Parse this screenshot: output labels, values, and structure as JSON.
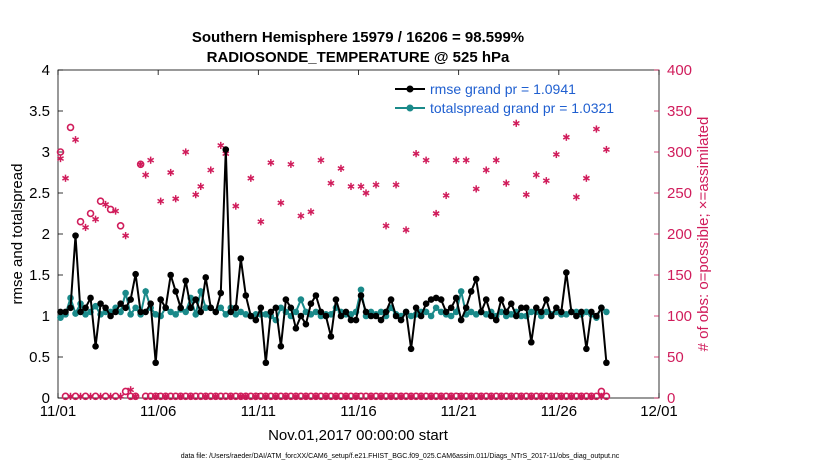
{
  "chart_data": {
    "type": "line",
    "title_line1": "Southern Hemisphere 15979 / 16206 = 98.599%",
    "title_line2": "RADIOSONDE_TEMPERATURE @ 525 hPa",
    "xlabel": "Nov.01,2017 00:00:00 start",
    "ylabel_left": "rmse and totalspread",
    "ylabel_right": "# of obs: o=possible; ×=assimilated",
    "footer": "data file: /Users/raeder/DAI/ATM_forcXX/CAM6_setup/f.e21.FHIST_BGC.f09_025.CAM6assim.011/Diags_NTrS_2017-11/obs_diag_output.nc",
    "x_tick_labels": [
      "11/01",
      "11/06",
      "11/11",
      "11/16",
      "11/21",
      "11/26",
      "12/01"
    ],
    "x_tick_days": [
      0,
      5,
      10,
      15,
      20,
      25,
      30
    ],
    "xlim_days": [
      0,
      30
    ],
    "ylim_left": [
      0,
      4
    ],
    "y_ticks_left": [
      "0",
      "0.5",
      "1",
      "1.5",
      "2",
      "2.5",
      "3",
      "3.5",
      "4"
    ],
    "ylim_right": [
      0,
      400
    ],
    "y_ticks_right": [
      "0",
      "50",
      "100",
      "150",
      "200",
      "250",
      "300",
      "350",
      "400"
    ],
    "x_step_days": 0.25,
    "colors": {
      "rmse": "#000000",
      "spread": "#1a8a8a",
      "obs": "#d01c5b",
      "legend_text": "#1f5fd0"
    },
    "series": [
      {
        "name": "rmse grand pr = 1.0941",
        "axis": "left",
        "values": [
          1.05,
          1.05,
          1.1,
          1.98,
          1.05,
          1.1,
          1.22,
          0.63,
          1.15,
          1.1,
          1.0,
          1.05,
          1.15,
          1.1,
          1.2,
          1.51,
          1.05,
          1.05,
          1.15,
          0.43,
          1.2,
          1.1,
          1.5,
          1.3,
          1.1,
          1.43,
          1.1,
          1.2,
          1.05,
          1.47,
          1.1,
          1.05,
          1.28,
          3.03,
          1.05,
          1.1,
          1.7,
          1.25,
          1.0,
          0.95,
          1.1,
          0.43,
          1.05,
          1.1,
          0.63,
          1.2,
          1.1,
          0.85,
          1.0,
          0.9,
          1.15,
          1.25,
          1.05,
          1.0,
          0.75,
          1.2,
          1.0,
          1.05,
          0.95,
          0.95,
          1.25,
          1.05,
          1.0,
          1.0,
          0.95,
          1.05,
          1.2,
          1.0,
          0.95,
          1.05,
          0.6,
          1.1,
          1.0,
          1.15,
          1.2,
          1.22,
          1.2,
          1.05,
          1.1,
          1.22,
          0.95,
          1.1,
          1.3,
          1.45,
          1.05,
          1.2,
          1.0,
          0.95,
          1.2,
          1.05,
          1.15,
          1.0,
          1.1,
          1.1,
          0.68,
          1.1,
          1.05,
          1.2,
          1.0,
          1.1,
          1.05,
          1.53,
          1.05,
          1.0,
          1.05,
          0.6,
          1.05,
          1.0,
          1.1,
          0.43
        ]
      },
      {
        "name": "totalspread grand pr = 1.0321",
        "axis": "left",
        "values": [
          0.98,
          1.02,
          1.22,
          1.03,
          1.15,
          1.02,
          1.05,
          1.12,
          1.02,
          1.05,
          1.05,
          1.1,
          1.05,
          1.28,
          1.02,
          1.1,
          1.02,
          1.3,
          1.1,
          1.02,
          1.0,
          1.1,
          1.05,
          1.02,
          1.08,
          1.05,
          1.22,
          1.02,
          1.3,
          1.1,
          1.1,
          1.05,
          1.1,
          1.02,
          1.1,
          1.02,
          1.05,
          1.02,
          1.0,
          1.02,
          1.02,
          1.02,
          1.0,
          0.95,
          1.1,
          1.05,
          1.0,
          1.05,
          1.2,
          1.05,
          1.02,
          1.05,
          1.0,
          1.02,
          1.02,
          1.1,
          1.05,
          1.02,
          1.02,
          1.05,
          1.32,
          1.0,
          1.05,
          1.02,
          1.05,
          1.0,
          1.1,
          1.02,
          1.0,
          1.05,
          1.0,
          1.02,
          1.05,
          1.05,
          1.0,
          1.1,
          1.05,
          1.02,
          1.0,
          1.05,
          1.3,
          1.02,
          1.05,
          1.02,
          1.05,
          1.02,
          1.05,
          1.0,
          1.05,
          1.0,
          1.02,
          1.05,
          1.0,
          1.0,
          1.05,
          1.05,
          1.0,
          1.05,
          1.02,
          1.05,
          1.02,
          1.02,
          1.05,
          1.05,
          1.02,
          1.05,
          1.02,
          0.98,
          1.1,
          1.05
        ]
      },
      {
        "name": "obs possible",
        "axis": "right",
        "marker": "circle",
        "values": [
          300,
          2,
          330,
          2,
          215,
          2,
          225,
          2,
          240,
          2,
          230,
          2,
          210,
          8,
          2,
          2,
          285,
          2,
          2,
          2,
          2,
          2,
          2,
          2,
          2,
          2,
          2,
          2,
          2,
          2,
          2,
          2,
          2,
          2,
          2,
          2,
          2,
          2,
          2,
          2,
          2,
          2,
          2,
          2,
          2,
          2,
          2,
          2,
          2,
          2,
          2,
          2,
          2,
          2,
          2,
          2,
          2,
          2,
          2,
          2,
          2,
          2,
          2,
          2,
          2,
          2,
          2,
          2,
          2,
          2,
          2,
          2,
          2,
          2,
          2,
          2,
          2,
          2,
          2,
          2,
          2,
          2,
          2,
          2,
          2,
          2,
          2,
          2,
          2,
          2,
          2,
          2,
          2,
          2,
          2,
          2,
          2,
          2,
          2,
          2,
          2,
          2,
          2,
          2,
          2,
          2,
          2,
          2,
          8,
          2
        ]
      },
      {
        "name": "obs assimilated",
        "axis": "right",
        "marker": "asterisk",
        "values": [
          292,
          268,
          2,
          315,
          2,
          208,
          2,
          218,
          2,
          236,
          2,
          228,
          2,
          198,
          10,
          2,
          285,
          272,
          290,
          2,
          240,
          2,
          275,
          243,
          2,
          300,
          2,
          248,
          258,
          2,
          278,
          2,
          308,
          298,
          2,
          234,
          2,
          2,
          268,
          2,
          215,
          2,
          287,
          2,
          238,
          2,
          285,
          2,
          222,
          2,
          227,
          2,
          290,
          2,
          262,
          2,
          280,
          2,
          258,
          2,
          258,
          250,
          2,
          260,
          2,
          210,
          2,
          260,
          2,
          205,
          2,
          298,
          2,
          290,
          2,
          225,
          2,
          247,
          2,
          290,
          2,
          290,
          2,
          255,
          2,
          278,
          2,
          290,
          2,
          262,
          2,
          335,
          2,
          248,
          2,
          272,
          2,
          265,
          2,
          297,
          2,
          318,
          2,
          245,
          2,
          268,
          2,
          328,
          2,
          303
        ]
      }
    ]
  }
}
